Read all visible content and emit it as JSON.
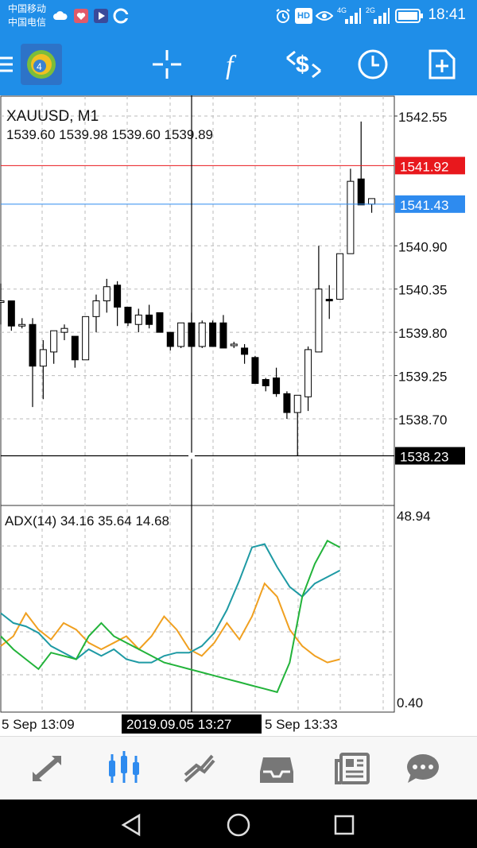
{
  "status_bar": {
    "carrier_1": "中国移动",
    "carrier_2": "中国电信",
    "network_1": "4G",
    "network_2": "2G",
    "hd": "HD",
    "time": "18:41"
  },
  "toolbar": {
    "icons": [
      "app-logo-icon",
      "crosshair-icon",
      "indicator-f-icon",
      "trade-icon",
      "clock-icon",
      "add-template-icon"
    ]
  },
  "chart": {
    "symbol_label": "XAUUSD, M1",
    "ohlc_label": "1539.60 1539.98 1539.60 1539.89",
    "price_ticks": [
      "1542.55",
      "1540.90",
      "1540.35",
      "1539.80",
      "1539.25",
      "1538.70"
    ],
    "ask_line_price": "1541.92",
    "bid_line_price": "1541.43",
    "crosshair_price": "1538.23",
    "crosshair_time": "2019.09.05 13:27",
    "time_labels": [
      "5 Sep 13:09",
      "5 Sep 13:33"
    ],
    "colors": {
      "ask": "#e8181d",
      "bid": "#2e8bef",
      "adx_main": "#22b33a",
      "plus_di": "#1e9aa4",
      "minus_di": "#f0a020"
    }
  },
  "adx": {
    "label": "ADX(14) 34.16 35.64 14.68",
    "scale_max": "48.94",
    "scale_min": "0.40"
  },
  "chart_data": {
    "type": "candlestick",
    "title": "XAUUSD, M1",
    "ylim": [
      1538.2,
      1542.8
    ],
    "candles": [
      {
        "o": 1540.2,
        "h": 1540.42,
        "l": 1539.9,
        "c": 1540.2
      },
      {
        "o": 1540.2,
        "h": 1540.2,
        "l": 1539.82,
        "c": 1539.88
      },
      {
        "o": 1539.9,
        "h": 1539.98,
        "l": 1539.85,
        "c": 1539.9
      },
      {
        "o": 1539.9,
        "h": 1539.98,
        "l": 1538.85,
        "c": 1539.37
      },
      {
        "o": 1539.37,
        "h": 1539.7,
        "l": 1538.95,
        "c": 1539.58
      },
      {
        "o": 1539.55,
        "h": 1539.82,
        "l": 1539.4,
        "c": 1539.82
      },
      {
        "o": 1539.8,
        "h": 1539.9,
        "l": 1539.7,
        "c": 1539.85
      },
      {
        "o": 1539.75,
        "h": 1539.75,
        "l": 1539.35,
        "c": 1539.45
      },
      {
        "o": 1539.45,
        "h": 1540.0,
        "l": 1539.45,
        "c": 1540.0
      },
      {
        "o": 1540.0,
        "h": 1540.28,
        "l": 1539.8,
        "c": 1540.2
      },
      {
        "o": 1540.2,
        "h": 1540.48,
        "l": 1540.05,
        "c": 1540.38
      },
      {
        "o": 1540.4,
        "h": 1540.45,
        "l": 1539.88,
        "c": 1540.12
      },
      {
        "o": 1540.12,
        "h": 1540.12,
        "l": 1539.88,
        "c": 1539.92
      },
      {
        "o": 1539.9,
        "h": 1540.1,
        "l": 1539.8,
        "c": 1540.02
      },
      {
        "o": 1540.02,
        "h": 1540.15,
        "l": 1539.85,
        "c": 1539.9
      },
      {
        "o": 1540.05,
        "h": 1540.05,
        "l": 1539.8,
        "c": 1539.8
      },
      {
        "o": 1539.8,
        "h": 1539.8,
        "l": 1539.57,
        "c": 1539.62
      },
      {
        "o": 1539.62,
        "h": 1539.92,
        "l": 1539.6,
        "c": 1539.92
      },
      {
        "o": 1539.92,
        "h": 1540.05,
        "l": 1539.62,
        "c": 1539.62
      },
      {
        "o": 1539.62,
        "h": 1539.95,
        "l": 1539.6,
        "c": 1539.92
      },
      {
        "o": 1539.92,
        "h": 1539.95,
        "l": 1539.62,
        "c": 1539.62
      },
      {
        "o": 1539.92,
        "h": 1540.02,
        "l": 1539.6,
        "c": 1539.6
      },
      {
        "o": 1539.65,
        "h": 1539.68,
        "l": 1539.6,
        "c": 1539.65
      },
      {
        "o": 1539.6,
        "h": 1539.65,
        "l": 1539.4,
        "c": 1539.52
      },
      {
        "o": 1539.48,
        "h": 1539.5,
        "l": 1539.15,
        "c": 1539.15
      },
      {
        "o": 1539.2,
        "h": 1539.22,
        "l": 1539.05,
        "c": 1539.12
      },
      {
        "o": 1539.22,
        "h": 1539.35,
        "l": 1538.98,
        "c": 1539.02
      },
      {
        "o": 1539.02,
        "h": 1539.05,
        "l": 1538.7,
        "c": 1538.78
      },
      {
        "o": 1538.78,
        "h": 1539.0,
        "l": 1538.23,
        "c": 1539.0
      },
      {
        "o": 1538.98,
        "h": 1539.62,
        "l": 1538.8,
        "c": 1539.58
      },
      {
        "o": 1539.55,
        "h": 1540.9,
        "l": 1539.55,
        "c": 1540.35
      },
      {
        "o": 1540.22,
        "h": 1540.4,
        "l": 1539.97,
        "c": 1540.2
      },
      {
        "o": 1540.22,
        "h": 1540.8,
        "l": 1540.22,
        "c": 1540.8
      },
      {
        "o": 1540.8,
        "h": 1541.88,
        "l": 1540.8,
        "c": 1541.72
      },
      {
        "o": 1541.75,
        "h": 1542.48,
        "l": 1541.42,
        "c": 1541.42
      },
      {
        "o": 1541.43,
        "h": 1541.48,
        "l": 1541.32,
        "c": 1541.5
      }
    ],
    "adx_series": [
      {
        "name": "ADX main",
        "values": [
          18,
          14,
          11,
          8,
          13,
          12,
          11,
          18,
          22,
          18,
          16,
          14,
          12,
          10,
          9,
          8,
          7,
          6,
          5,
          4,
          3,
          2,
          1,
          10,
          30,
          40,
          47,
          45
        ]
      },
      {
        "name": "+DI",
        "values": [
          25,
          22,
          21,
          19,
          15,
          13,
          11,
          14,
          12,
          14,
          11,
          10,
          10,
          12,
          13,
          13,
          15,
          19,
          26,
          35,
          45,
          46,
          39,
          33,
          30,
          34,
          36,
          38
        ]
      },
      {
        "name": "-DI",
        "values": [
          15,
          18,
          25,
          20,
          17,
          22,
          20,
          16,
          14,
          16,
          18,
          14,
          18,
          24,
          20,
          14,
          12,
          16,
          22,
          17,
          24,
          34,
          30,
          20,
          15,
          12,
          10,
          11
        ]
      }
    ]
  }
}
